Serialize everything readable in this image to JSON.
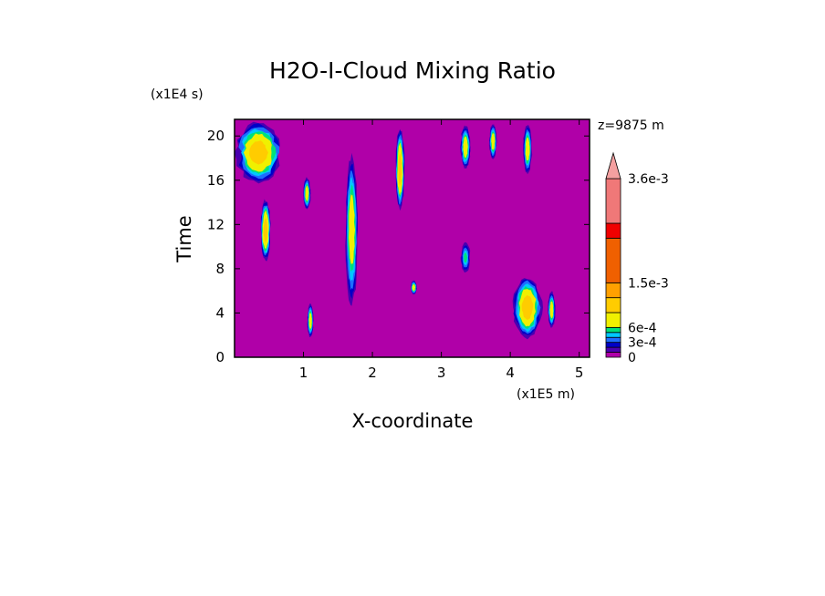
{
  "chart_data": {
    "type": "heatmap",
    "title": "H2O-I-Cloud Mixing Ratio",
    "xlabel": "X-coordinate",
    "ylabel": "Time",
    "x_units": "(x1E5 m)",
    "y_units": "(x1E4 s)",
    "level_annotation": "z=9875 m",
    "xlim": [
      0,
      5.15
    ],
    "ylim": [
      0,
      21.5
    ],
    "x_ticks": [
      "1",
      "2",
      "3",
      "4",
      "5"
    ],
    "x_tick_values": [
      1,
      2,
      3,
      4,
      5
    ],
    "y_ticks": [
      "0",
      "4",
      "8",
      "12",
      "16",
      "20"
    ],
    "y_tick_values": [
      0,
      4,
      8,
      12,
      16,
      20
    ],
    "background_color": "#b000a8",
    "colorbar": {
      "labels": [
        "0",
        "3e-4",
        "6e-4",
        "1.5e-3",
        "3.6e-3"
      ],
      "label_values": [
        0,
        0.0003,
        0.0006,
        0.0015,
        0.0036
      ],
      "levels": [
        {
          "lo": 0,
          "hi": 0.0001,
          "color": "#b000a8"
        },
        {
          "lo": 0.0001,
          "hi": 0.0002,
          "color": "#4a00b0"
        },
        {
          "lo": 0.0002,
          "hi": 0.0003,
          "color": "#0000c8"
        },
        {
          "lo": 0.0003,
          "hi": 0.0004,
          "color": "#1e6cff"
        },
        {
          "lo": 0.0004,
          "hi": 0.0005,
          "color": "#00c8ff"
        },
        {
          "lo": 0.0005,
          "hi": 0.0006,
          "color": "#00e07a"
        },
        {
          "lo": 0.0006,
          "hi": 0.0009,
          "color": "#f0f000"
        },
        {
          "lo": 0.0009,
          "hi": 0.0012,
          "color": "#ffcc00"
        },
        {
          "lo": 0.0012,
          "hi": 0.0015,
          "color": "#ffa000"
        },
        {
          "lo": 0.0015,
          "hi": 0.0024,
          "color": "#f06000"
        },
        {
          "lo": 0.0024,
          "hi": 0.0027,
          "color": "#f00000"
        },
        {
          "lo": 0.0027,
          "hi": 0.0036,
          "color": "#f07878"
        }
      ],
      "extend_max_color": "#f4a0a0"
    },
    "features": [
      {
        "name": "cloud-patch-topleft",
        "x": 0.35,
        "y": 18.5,
        "x_halfwidth": 0.35,
        "y_halfheight": 3.0,
        "peak": 0.0012
      },
      {
        "name": "streak-x0-4",
        "x": 0.45,
        "y": 11.5,
        "x_halfwidth": 0.08,
        "y_halfheight": 3.0,
        "peak": 0.0012
      },
      {
        "name": "streak-x1-1",
        "x": 1.1,
        "y": 3.3,
        "x_halfwidth": 0.05,
        "y_halfheight": 1.7,
        "peak": 0.0009
      },
      {
        "name": "streak-x1-2",
        "x": 1.05,
        "y": 14.8,
        "x_halfwidth": 0.06,
        "y_halfheight": 1.6,
        "peak": 0.0009
      },
      {
        "name": "streak-x1-7",
        "x": 1.7,
        "y": 11.5,
        "x_halfwidth": 0.1,
        "y_halfheight": 7.5,
        "peak": 0.0009
      },
      {
        "name": "streak-x2-4",
        "x": 2.4,
        "y": 17.0,
        "x_halfwidth": 0.07,
        "y_halfheight": 4.0,
        "peak": 0.0012
      },
      {
        "name": "streak-x2-6",
        "x": 2.6,
        "y": 6.3,
        "x_halfwidth": 0.05,
        "y_halfheight": 0.7,
        "peak": 0.0009
      },
      {
        "name": "streak-x3-3",
        "x": 3.35,
        "y": 19.0,
        "x_halfwidth": 0.08,
        "y_halfheight": 2.2,
        "peak": 0.0009
      },
      {
        "name": "streak-x3-4",
        "x": 3.35,
        "y": 9.0,
        "x_halfwidth": 0.08,
        "y_halfheight": 1.6,
        "peak": 0.0006
      },
      {
        "name": "streak-x3-7",
        "x": 3.75,
        "y": 19.5,
        "x_halfwidth": 0.06,
        "y_halfheight": 1.8,
        "peak": 0.0009
      },
      {
        "name": "streak-x4-25",
        "x": 4.25,
        "y": 18.8,
        "x_halfwidth": 0.07,
        "y_halfheight": 2.5,
        "peak": 0.0009
      },
      {
        "name": "cloud-patch-bottomright",
        "x": 4.25,
        "y": 4.5,
        "x_halfwidth": 0.22,
        "y_halfheight": 3.0,
        "peak": 0.0012
      },
      {
        "name": "streak-x4-6",
        "x": 4.6,
        "y": 4.3,
        "x_halfwidth": 0.06,
        "y_halfheight": 1.8,
        "peak": 0.0009
      }
    ]
  }
}
